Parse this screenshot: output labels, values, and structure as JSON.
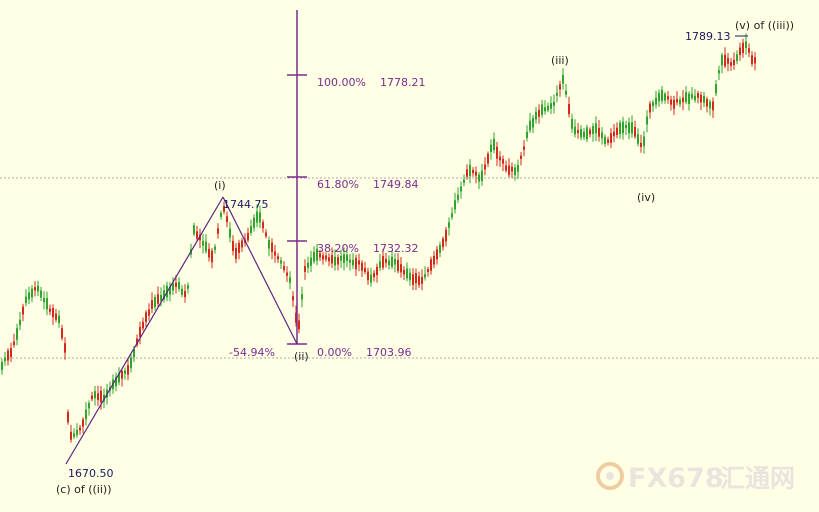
{
  "colors": {
    "background": "#ffffe6",
    "up_candle": "#2ea62e",
    "down_candle": "#d42a1e",
    "fib_line": "#7b2d8e",
    "wave_line": "#5a2580",
    "grid_dotted": "#a8a8a8",
    "watermark": "#d9cfd9"
  },
  "chart_data": {
    "type": "candlestick",
    "fibonacci_levels": [
      {
        "percent": "100.00%",
        "price": "1778.21"
      },
      {
        "percent": "61.80%",
        "price": "1749.84"
      },
      {
        "percent": "38.20%",
        "price": "1732.32"
      },
      {
        "percent": "0.00%",
        "price": "1703.96"
      }
    ],
    "retracement_label": "-54.94%",
    "price_labels": [
      {
        "text": "1670.50",
        "price": 1670.5
      },
      {
        "text": "1744.75",
        "price": 1744.75
      },
      {
        "text": "1789.13",
        "price": 1789.13
      }
    ],
    "wave_labels": [
      {
        "text": "(c) of ((ii))"
      },
      {
        "text": "(i)"
      },
      {
        "text": "(ii)"
      },
      {
        "text": "(iii)"
      },
      {
        "text": "(iv)"
      },
      {
        "text": "(v)  of ((iii))"
      }
    ],
    "grid": "horizontal dotted lines",
    "legend": "none"
  },
  "watermark": {
    "text": "FX678",
    "cn_text": "汇通网"
  }
}
